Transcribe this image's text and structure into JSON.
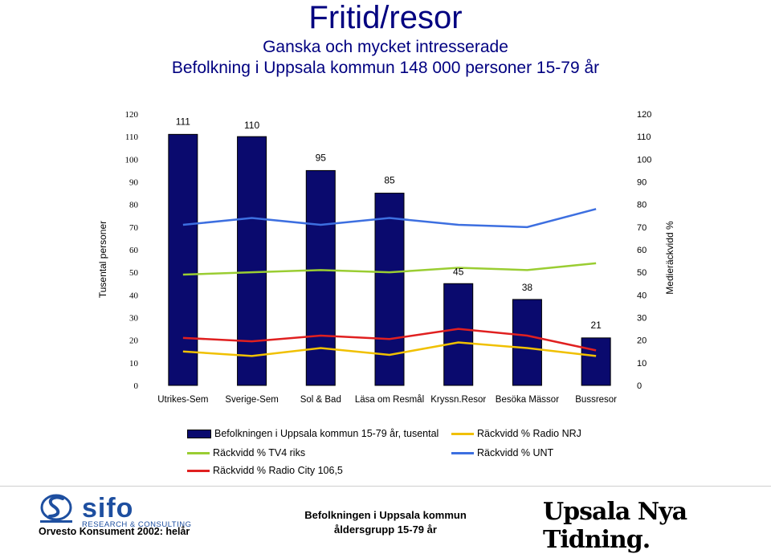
{
  "header": {
    "title": "Fritid/resor",
    "subtitle1": "Ganska och mycket intresserade",
    "subtitle2": "Befolkning i Uppsala kommun 148 000 personer 15-79 år"
  },
  "chart_data": {
    "type": "bar",
    "categories": [
      "Utrikes-Sem",
      "Sverige-Sem",
      "Sol & Bad",
      "Läsa om  Resmål",
      "Kryssn.Resor",
      "Besöka Mässor",
      "Bussresor"
    ],
    "bar_series": {
      "name": "Befolkningen i Uppsala kommun 15-79 år, tusental",
      "values": [
        111,
        110,
        95,
        85,
        45,
        38,
        21
      ],
      "color": "#0a0a6e"
    },
    "line_series": [
      {
        "name": "Räckvidd % TV4 riks",
        "values": [
          49,
          50,
          51,
          50,
          52,
          51,
          54
        ],
        "color": "#9acd32"
      },
      {
        "name": "Räckvidd % Radio City 106,5",
        "values": [
          21,
          19.5,
          22,
          20.5,
          25,
          22,
          15.5
        ],
        "color": "#e02020"
      },
      {
        "name": "Räckvidd % Radio NRJ",
        "values": [
          15,
          13,
          16.5,
          13.5,
          19,
          16.5,
          13
        ],
        "color": "#f0c000"
      },
      {
        "name": "Räckvidd % UNT",
        "values": [
          71,
          74,
          71,
          74,
          71,
          70,
          78
        ],
        "color": "#3d6fe0"
      }
    ],
    "ylabel_left": "Tusental personer",
    "ylabel_right": "Medieräckvidd %",
    "ylim": [
      0,
      120
    ],
    "yticks": [
      0,
      10,
      20,
      30,
      40,
      50,
      60,
      70,
      80,
      90,
      100,
      110,
      120
    ],
    "grid": false
  },
  "legend": {
    "bar": "Befolkningen i Uppsala kommun 15-79 år, tusental",
    "nrj": "Räckvidd % Radio NRJ",
    "tv4": "Räckvidd % TV4 riks",
    "unt": "Räckvidd % UNT",
    "city": "Räckvidd % Radio City 106,5"
  },
  "footer": {
    "sifo": "sifo",
    "sifo_sub": "RESEARCH & CONSULTING",
    "orvesto": "Orvesto Konsument 2002: helår",
    "center_line1": "Befolkningen i Uppsala kommun",
    "center_line2": "åldersgrupp 15-79 år",
    "unt_logo": "Upsala Nya Tidning."
  }
}
